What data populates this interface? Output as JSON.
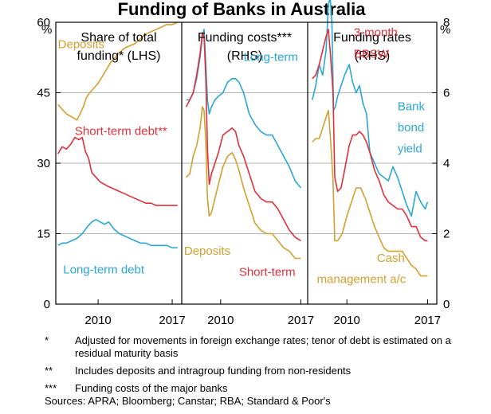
{
  "chart_data": {
    "type": "line",
    "title": "Funding of Banks in Australia",
    "left_axis": {
      "unit": "%",
      "min": 0,
      "max": 60,
      "ticks": [
        "0",
        "15",
        "30",
        "45",
        "60"
      ]
    },
    "right_axis": {
      "unit": "%",
      "min": 0,
      "max": 8,
      "ticks": [
        "0",
        "2",
        "4",
        "6",
        "8"
      ]
    },
    "x_ticks": [
      "2010",
      "2017"
    ],
    "panels": [
      {
        "title_lines": [
          "Share of total",
          "funding* (LHS)"
        ],
        "axis": "left",
        "x_range": [
          2006,
          2017.9
        ],
        "series": [
          {
            "name": "Deposits",
            "color": "#d4a030",
            "x": [
              2006.2,
              2006.6,
              2007.0,
              2007.4,
              2007.8,
              2008.0,
              2008.3,
              2008.6,
              2008.9,
              2009.2,
              2009.6,
              2010.0,
              2010.4,
              2010.8,
              2011.2,
              2011.6,
              2012.0,
              2012.5,
              2013.0,
              2013.5,
              2014.0,
              2014.5,
              2015.0,
              2015.5,
              2016.0,
              2016.5,
              2017.0,
              2017.5
            ],
            "y": [
              42.5,
              41.5,
              40.5,
              40,
              39.5,
              39.2,
              40.5,
              42,
              44,
              45,
              46,
              47,
              48.5,
              50,
              51.5,
              52.5,
              53.5,
              54.5,
              55,
              55.5,
              56.5,
              57.5,
              58,
              58.5,
              59,
              59.5,
              59.5,
              60
            ]
          },
          {
            "name": "Short-term debt**",
            "color": "#e0303a",
            "x": [
              2006.2,
              2006.6,
              2007.0,
              2007.4,
              2007.8,
              2008.2,
              2008.5,
              2008.8,
              2009.1,
              2009.4,
              2009.8,
              2010.2,
              2010.6,
              2011.0,
              2011.5,
              2012.0,
              2012.5,
              2013.0,
              2013.5,
              2014.0,
              2014.5,
              2015.0,
              2015.5,
              2016.0,
              2016.5,
              2017.0,
              2017.5
            ],
            "y": [
              32,
              33.5,
              33,
              34,
              35.5,
              35,
              35.5,
              32.5,
              31,
              28,
              27,
              26,
              25.5,
              25,
              24.5,
              24,
              23.5,
              23,
              22.5,
              22,
              21.5,
              21.5,
              21,
              21,
              21,
              21,
              21
            ]
          },
          {
            "name": "Long-term debt",
            "color": "#2aa7d6",
            "x": [
              2006.2,
              2006.6,
              2007.0,
              2007.5,
              2008.0,
              2008.5,
              2009.0,
              2009.4,
              2009.8,
              2010.2,
              2010.6,
              2011.0,
              2011.5,
              2012.0,
              2012.5,
              2013.0,
              2013.5,
              2014.0,
              2014.5,
              2015.0,
              2015.5,
              2016.0,
              2016.5,
              2017.0,
              2017.5
            ],
            "y": [
              12.5,
              13,
              13,
              13.5,
              14,
              15,
              16.5,
              17.5,
              18,
              17.5,
              17,
              17.5,
              16,
              15,
              14.5,
              14,
              13.5,
              13,
              13,
              12.5,
              12.5,
              12.5,
              12.5,
              12,
              12
            ]
          }
        ],
        "labels": [
          {
            "text": "Deposits",
            "color": "#d4a030",
            "x": 2006.2,
            "y": 54.5
          },
          {
            "text": "Short-term debt**",
            "color": "#e0303a",
            "x": 2007.8,
            "y": 36
          },
          {
            "text": "Long-term debt",
            "color": "#2aa7d6",
            "x": 2006.7,
            "y": 6.5
          }
        ]
      },
      {
        "title_lines": [
          "Funding costs***",
          "(RHS)"
        ],
        "axis": "right",
        "x_range": [
          2006.6,
          2017.6
        ],
        "series": [
          {
            "name": "Long-term",
            "color": "#2aa7d6",
            "x": [
              2007.0,
              2007.3,
              2007.6,
              2007.9,
              2008.2,
              2008.4,
              2008.55,
              2008.7,
              2008.85,
              2009.0,
              2009.2,
              2009.5,
              2009.8,
              2010.2,
              2010.6,
              2011.0,
              2011.3,
              2011.6,
              2012.0,
              2012.5,
              2013.0,
              2013.5,
              2014.0,
              2014.5,
              2015.0,
              2015.5,
              2016.0,
              2016.5,
              2017.0
            ],
            "y": [
              5.8,
              5.8,
              6.0,
              6.4,
              7.0,
              7.6,
              7.8,
              6.8,
              5.8,
              5.4,
              5.6,
              5.8,
              5.9,
              6.0,
              6.3,
              6.4,
              6.4,
              6.3,
              6.0,
              5.4,
              5.1,
              4.9,
              4.8,
              4.8,
              4.5,
              4.2,
              3.9,
              3.5,
              3.3
            ]
          },
          {
            "name": "Short-term",
            "color": "#e0303a",
            "x": [
              2007.0,
              2007.3,
              2007.6,
              2007.9,
              2008.2,
              2008.4,
              2008.55,
              2008.7,
              2008.85,
              2009.0,
              2009.2,
              2009.5,
              2009.8,
              2010.2,
              2010.6,
              2011.0,
              2011.3,
              2011.6,
              2012.0,
              2012.5,
              2013.0,
              2013.5,
              2014.0,
              2014.5,
              2015.0,
              2015.5,
              2016.0,
              2016.5,
              2017.0
            ],
            "y": [
              5.6,
              5.8,
              6.0,
              6.5,
              7.1,
              7.7,
              7.6,
              6.4,
              4.4,
              3.4,
              3.7,
              4.0,
              4.3,
              4.8,
              4.9,
              5.0,
              4.9,
              4.5,
              4.2,
              3.7,
              3.2,
              3.0,
              2.9,
              2.9,
              2.7,
              2.4,
              2.1,
              1.9,
              1.8
            ]
          },
          {
            "name": "Deposits",
            "color": "#d4a030",
            "x": [
              2007.0,
              2007.3,
              2007.6,
              2007.9,
              2008.2,
              2008.4,
              2008.55,
              2008.7,
              2008.85,
              2009.0,
              2009.2,
              2009.5,
              2009.8,
              2010.2,
              2010.6,
              2011.0,
              2011.3,
              2011.6,
              2012.0,
              2012.5,
              2013.0,
              2013.5,
              2014.0,
              2014.5,
              2015.0,
              2015.5,
              2016.0,
              2016.5,
              2017.0
            ],
            "y": [
              3.6,
              3.7,
              4.2,
              4.5,
              5.0,
              5.6,
              5.5,
              4.6,
              3.0,
              2.5,
              2.6,
              3.0,
              3.4,
              3.9,
              4.2,
              4.3,
              4.1,
              3.8,
              3.3,
              2.8,
              2.3,
              2.1,
              2.0,
              2.0,
              1.8,
              1.6,
              1.5,
              1.3,
              1.3
            ]
          }
        ],
        "labels": [
          {
            "text": "Long-term",
            "color": "#2aa7d6",
            "x": 2012.0,
            "y": 6.9
          },
          {
            "text": "Deposits",
            "color": "#d4a030",
            "x": 2006.8,
            "y": 1.4
          },
          {
            "text": "Short-term",
            "color": "#e0303a",
            "x": 2011.6,
            "y": 0.8
          }
        ]
      },
      {
        "title_lines": [
          "Funding rates",
          "(RHS)"
        ],
        "axis": "right",
        "x_range": [
          2006.6,
          2017.8
        ],
        "series": [
          {
            "name": "Bank bond yield",
            "color": "#2aa7d6",
            "x": [
              2007.0,
              2007.3,
              2007.6,
              2007.9,
              2008.2,
              2008.4,
              2008.55,
              2008.7,
              2008.85,
              2009.0,
              2009.2,
              2009.5,
              2009.8,
              2010.2,
              2010.5,
              2010.8,
              2011.1,
              2011.4,
              2011.7,
              2012.0,
              2012.4,
              2012.8,
              2013.2,
              2013.6,
              2014.0,
              2014.4,
              2014.8,
              2015.2,
              2015.6,
              2016.0,
              2016.4,
              2016.8,
              2017.0
            ],
            "y": [
              5.8,
              6.2,
              6.8,
              6.5,
              7.2,
              8.5,
              8.7,
              8.0,
              5.5,
              5.6,
              5.9,
              6.2,
              6.5,
              6.8,
              6.3,
              6.0,
              6.2,
              5.7,
              5.4,
              4.3,
              4.0,
              3.7,
              3.6,
              3.5,
              3.9,
              3.6,
              3.2,
              2.8,
              2.5,
              3.2,
              2.9,
              2.7,
              2.9
            ]
          },
          {
            "name": "3-month BBSW",
            "color": "#e0303a",
            "x": [
              2007.0,
              2007.3,
              2007.6,
              2007.9,
              2008.2,
              2008.4,
              2008.6,
              2008.8,
              2008.95,
              2009.2,
              2009.5,
              2009.8,
              2010.2,
              2010.5,
              2010.8,
              2011.1,
              2011.4,
              2011.7,
              2012.0,
              2012.4,
              2012.8,
              2013.2,
              2013.6,
              2014.0,
              2014.4,
              2014.8,
              2015.2,
              2015.6,
              2016.0,
              2016.4,
              2016.8,
              2017.0
            ],
            "y": [
              6.4,
              6.5,
              6.8,
              7.2,
              7.6,
              7.8,
              7.0,
              6.0,
              3.6,
              3.2,
              3.3,
              3.8,
              4.5,
              4.8,
              4.8,
              4.9,
              4.8,
              4.6,
              4.3,
              3.8,
              3.5,
              3.1,
              2.9,
              2.8,
              2.7,
              2.7,
              2.5,
              2.2,
              2.2,
              1.9,
              1.8,
              1.8
            ]
          },
          {
            "name": "Cash management a/c",
            "color": "#d4a030",
            "x": [
              2007.0,
              2007.3,
              2007.6,
              2007.9,
              2008.2,
              2008.4,
              2008.6,
              2008.8,
              2008.95,
              2009.2,
              2009.6,
              2010.0,
              2010.4,
              2010.8,
              2011.2,
              2011.6,
              2012.0,
              2012.4,
              2012.8,
              2013.2,
              2013.6,
              2014.0,
              2014.4,
              2014.8,
              2015.2,
              2015.6,
              2016.0,
              2016.4,
              2016.8,
              2017.0
            ],
            "y": [
              4.6,
              4.7,
              4.7,
              5.0,
              5.3,
              5.5,
              4.6,
              3.5,
              1.8,
              1.8,
              2.0,
              2.5,
              2.9,
              3.3,
              3.3,
              3.0,
              2.6,
              2.2,
              1.9,
              1.6,
              1.5,
              1.5,
              1.5,
              1.5,
              1.3,
              1.1,
              1.0,
              0.8,
              0.8,
              0.8
            ]
          }
        ],
        "labels": [
          {
            "text": "3-month",
            "color": "#e0303a",
            "x": 2010.6,
            "y": 7.6
          },
          {
            "text": "BBSW",
            "color": "#e0303a",
            "x": 2010.6,
            "y": 7.0
          },
          {
            "text": "Bank",
            "color": "#2aa7d6",
            "x": 2014.4,
            "y": 5.5
          },
          {
            "text": "bond",
            "color": "#2aa7d6",
            "x": 2014.4,
            "y": 4.9
          },
          {
            "text": "yield",
            "color": "#2aa7d6",
            "x": 2014.4,
            "y": 4.3
          },
          {
            "text": "Cash",
            "color": "#d4a030",
            "x": 2012.6,
            "y": 1.2
          },
          {
            "text": "management a/c",
            "color": "#d4a030",
            "x": 2007.4,
            "y": 0.6
          }
        ]
      }
    ]
  },
  "notes": [
    {
      "mark": "*",
      "text": "Adjusted for movements in foreign exchange rates; tenor of debt is estimated on a residual maturity basis"
    },
    {
      "mark": "**",
      "text": "Includes deposits and intragroup funding from non-residents"
    },
    {
      "mark": "***",
      "text": "Funding costs of the major banks"
    }
  ],
  "sources": "Sources:   APRA; Bloomberg; Canstar; RBA; Standard & Poor's"
}
